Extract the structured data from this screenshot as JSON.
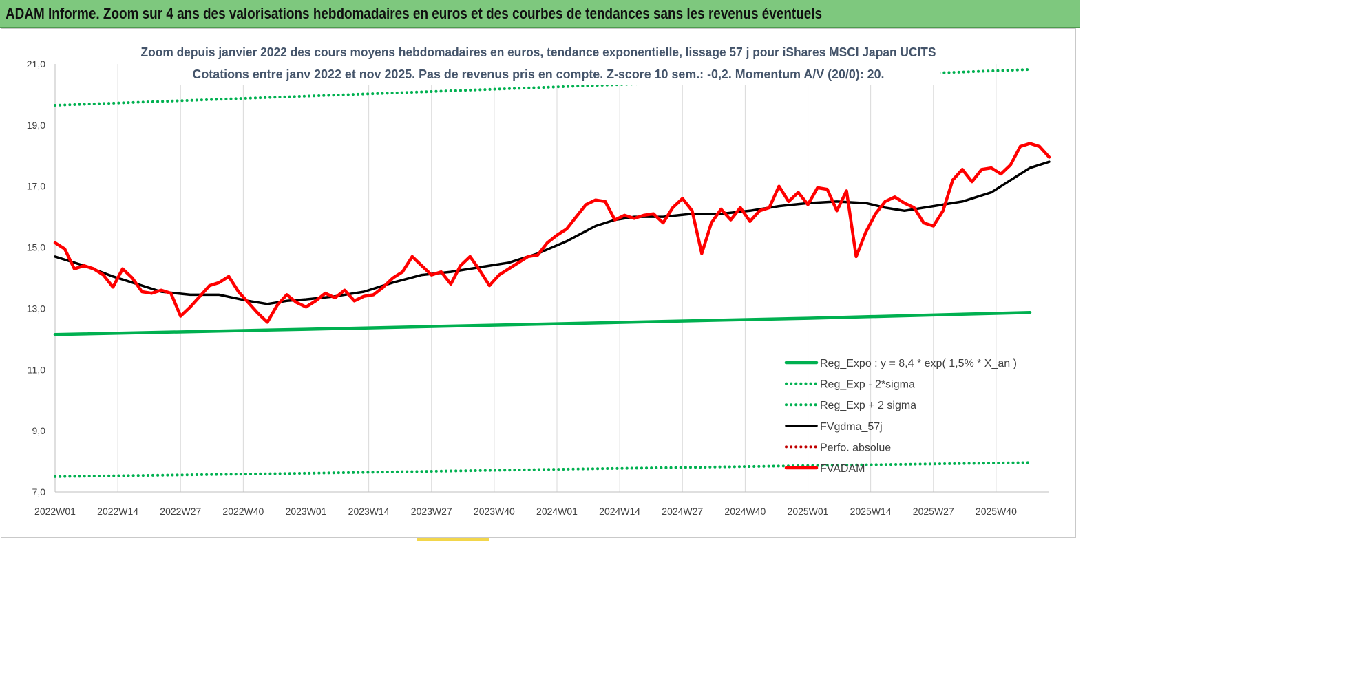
{
  "banner": {
    "title": "ADAM Informe. Zoom sur 4 ans des valorisations hebdomadaires en euros et des courbes de tendances sans les revenus éventuels"
  },
  "colors": {
    "banner_bg": "#7ec87e",
    "reg_green": "#00b050",
    "fvadam_red": "#ff0000",
    "perfo_red": "#c00000",
    "mma_black": "#000000",
    "grid": "#d9d9d9",
    "subtitle": "#44546a"
  },
  "chart_data": {
    "type": "line",
    "subtitle": [
      "Zoom depuis janvier 2022 des cours moyens hebdomadaires en euros, tendance exponentielle, lissage 57 j pour iShares MSCI Japan UCITS",
      "Cotations entre janv 2022 et nov 2025. Pas de revenus pris en compte. Z-score 10 sem.: -0,2. Momentum A/V (20/0): 20."
    ],
    "ylim": [
      7,
      21
    ],
    "y_ticks": [
      "21,0",
      "19,0",
      "17,0",
      "15,0",
      "13,0",
      "11,0",
      "9,0",
      "7,0"
    ],
    "x_ticks": [
      "2022W01",
      "2022W14",
      "2022W27",
      "2022W40",
      "2023W01",
      "2023W14",
      "2023W27",
      "2023W40",
      "2024W01",
      "2024W14",
      "2024W27",
      "2024W40",
      "2025W01",
      "2025W14",
      "2025W27",
      "2025W40"
    ],
    "grid": "vertical",
    "legend_position": "bottom-right",
    "series": [
      {
        "name": "Reg_Expo : y = 8,4 * exp( 1,5% *  X_an )",
        "style": "solid",
        "color": "#00b050",
        "keypoints": [
          [
            0,
            12.15
          ],
          [
            52,
            12.32
          ],
          [
            104,
            12.5
          ],
          [
            156,
            12.68
          ],
          [
            202,
            12.87
          ]
        ]
      },
      {
        "name": "Reg_Exp - 2*sigma",
        "style": "dotted",
        "color": "#00b050",
        "keypoints": [
          [
            0,
            7.5
          ],
          [
            52,
            7.61
          ],
          [
            104,
            7.74
          ],
          [
            156,
            7.86
          ],
          [
            202,
            7.96
          ]
        ]
      },
      {
        "name": "Reg_Exp + 2 sigma",
        "style": "dotted",
        "color": "#00b050",
        "keypoints": [
          [
            0,
            19.65
          ],
          [
            52,
            19.95
          ],
          [
            104,
            20.25
          ],
          [
            156,
            20.55
          ],
          [
            202,
            20.82
          ]
        ]
      },
      {
        "name": "FVgdma_57j",
        "style": "solid",
        "color": "#000000",
        "keypoints": [
          [
            0,
            14.7
          ],
          [
            6,
            14.4
          ],
          [
            12,
            14.05
          ],
          [
            18,
            13.75
          ],
          [
            22,
            13.55
          ],
          [
            28,
            13.45
          ],
          [
            34,
            13.45
          ],
          [
            40,
            13.25
          ],
          [
            44,
            13.15
          ],
          [
            48,
            13.25
          ],
          [
            52,
            13.3
          ],
          [
            58,
            13.4
          ],
          [
            64,
            13.55
          ],
          [
            70,
            13.85
          ],
          [
            76,
            14.1
          ],
          [
            82,
            14.2
          ],
          [
            88,
            14.35
          ],
          [
            94,
            14.5
          ],
          [
            100,
            14.8
          ],
          [
            106,
            15.2
          ],
          [
            112,
            15.7
          ],
          [
            116,
            15.9
          ],
          [
            120,
            16.0
          ],
          [
            126,
            16.0
          ],
          [
            132,
            16.1
          ],
          [
            138,
            16.1
          ],
          [
            144,
            16.2
          ],
          [
            150,
            16.35
          ],
          [
            156,
            16.45
          ],
          [
            162,
            16.5
          ],
          [
            168,
            16.45
          ],
          [
            172,
            16.3
          ],
          [
            176,
            16.2
          ],
          [
            182,
            16.35
          ],
          [
            188,
            16.5
          ],
          [
            194,
            16.8
          ],
          [
            198,
            17.2
          ],
          [
            202,
            17.6
          ],
          [
            206,
            17.8
          ]
        ]
      },
      {
        "name": "Perfo. absolue",
        "style": "dotted",
        "color": "#c00000",
        "keypoints": []
      },
      {
        "name": "FVADAM",
        "style": "solid",
        "color": "#ff0000",
        "keypoints": [
          [
            0,
            15.15
          ],
          [
            2,
            14.95
          ],
          [
            4,
            14.3
          ],
          [
            6,
            14.4
          ],
          [
            8,
            14.3
          ],
          [
            10,
            14.1
          ],
          [
            12,
            13.7
          ],
          [
            14,
            14.3
          ],
          [
            16,
            14.0
          ],
          [
            18,
            13.55
          ],
          [
            20,
            13.5
          ],
          [
            22,
            13.6
          ],
          [
            24,
            13.5
          ],
          [
            26,
            12.75
          ],
          [
            28,
            13.05
          ],
          [
            30,
            13.4
          ],
          [
            32,
            13.75
          ],
          [
            34,
            13.85
          ],
          [
            36,
            14.05
          ],
          [
            38,
            13.55
          ],
          [
            40,
            13.2
          ],
          [
            42,
            12.85
          ],
          [
            44,
            12.55
          ],
          [
            46,
            13.1
          ],
          [
            48,
            13.45
          ],
          [
            50,
            13.2
          ],
          [
            52,
            13.05
          ],
          [
            54,
            13.25
          ],
          [
            56,
            13.5
          ],
          [
            58,
            13.35
          ],
          [
            60,
            13.6
          ],
          [
            62,
            13.25
          ],
          [
            64,
            13.4
          ],
          [
            66,
            13.45
          ],
          [
            68,
            13.7
          ],
          [
            70,
            14.0
          ],
          [
            72,
            14.2
          ],
          [
            74,
            14.7
          ],
          [
            76,
            14.4
          ],
          [
            78,
            14.1
          ],
          [
            80,
            14.2
          ],
          [
            82,
            13.8
          ],
          [
            84,
            14.4
          ],
          [
            86,
            14.7
          ],
          [
            88,
            14.25
          ],
          [
            90,
            13.75
          ],
          [
            92,
            14.1
          ],
          [
            94,
            14.3
          ],
          [
            96,
            14.5
          ],
          [
            98,
            14.7
          ],
          [
            100,
            14.75
          ],
          [
            102,
            15.15
          ],
          [
            104,
            15.4
          ],
          [
            106,
            15.6
          ],
          [
            108,
            16.0
          ],
          [
            110,
            16.4
          ],
          [
            112,
            16.55
          ],
          [
            114,
            16.5
          ],
          [
            116,
            15.9
          ],
          [
            118,
            16.05
          ],
          [
            120,
            15.95
          ],
          [
            122,
            16.05
          ],
          [
            124,
            16.1
          ],
          [
            126,
            15.8
          ],
          [
            128,
            16.3
          ],
          [
            130,
            16.6
          ],
          [
            132,
            16.2
          ],
          [
            134,
            14.8
          ],
          [
            136,
            15.8
          ],
          [
            138,
            16.25
          ],
          [
            140,
            15.9
          ],
          [
            142,
            16.3
          ],
          [
            144,
            15.85
          ],
          [
            146,
            16.2
          ],
          [
            148,
            16.3
          ],
          [
            150,
            17.0
          ],
          [
            152,
            16.5
          ],
          [
            154,
            16.8
          ],
          [
            156,
            16.4
          ],
          [
            158,
            16.95
          ],
          [
            160,
            16.9
          ],
          [
            162,
            16.2
          ],
          [
            164,
            16.85
          ],
          [
            166,
            14.7
          ],
          [
            168,
            15.5
          ],
          [
            170,
            16.1
          ],
          [
            172,
            16.5
          ],
          [
            174,
            16.65
          ],
          [
            176,
            16.45
          ],
          [
            178,
            16.3
          ],
          [
            180,
            15.8
          ],
          [
            182,
            15.7
          ],
          [
            184,
            16.2
          ],
          [
            186,
            17.2
          ],
          [
            188,
            17.55
          ],
          [
            190,
            17.15
          ],
          [
            192,
            17.55
          ],
          [
            194,
            17.6
          ],
          [
            196,
            17.4
          ],
          [
            198,
            17.7
          ],
          [
            200,
            18.3
          ],
          [
            202,
            18.4
          ],
          [
            204,
            18.3
          ],
          [
            206,
            17.95
          ]
        ]
      }
    ]
  }
}
